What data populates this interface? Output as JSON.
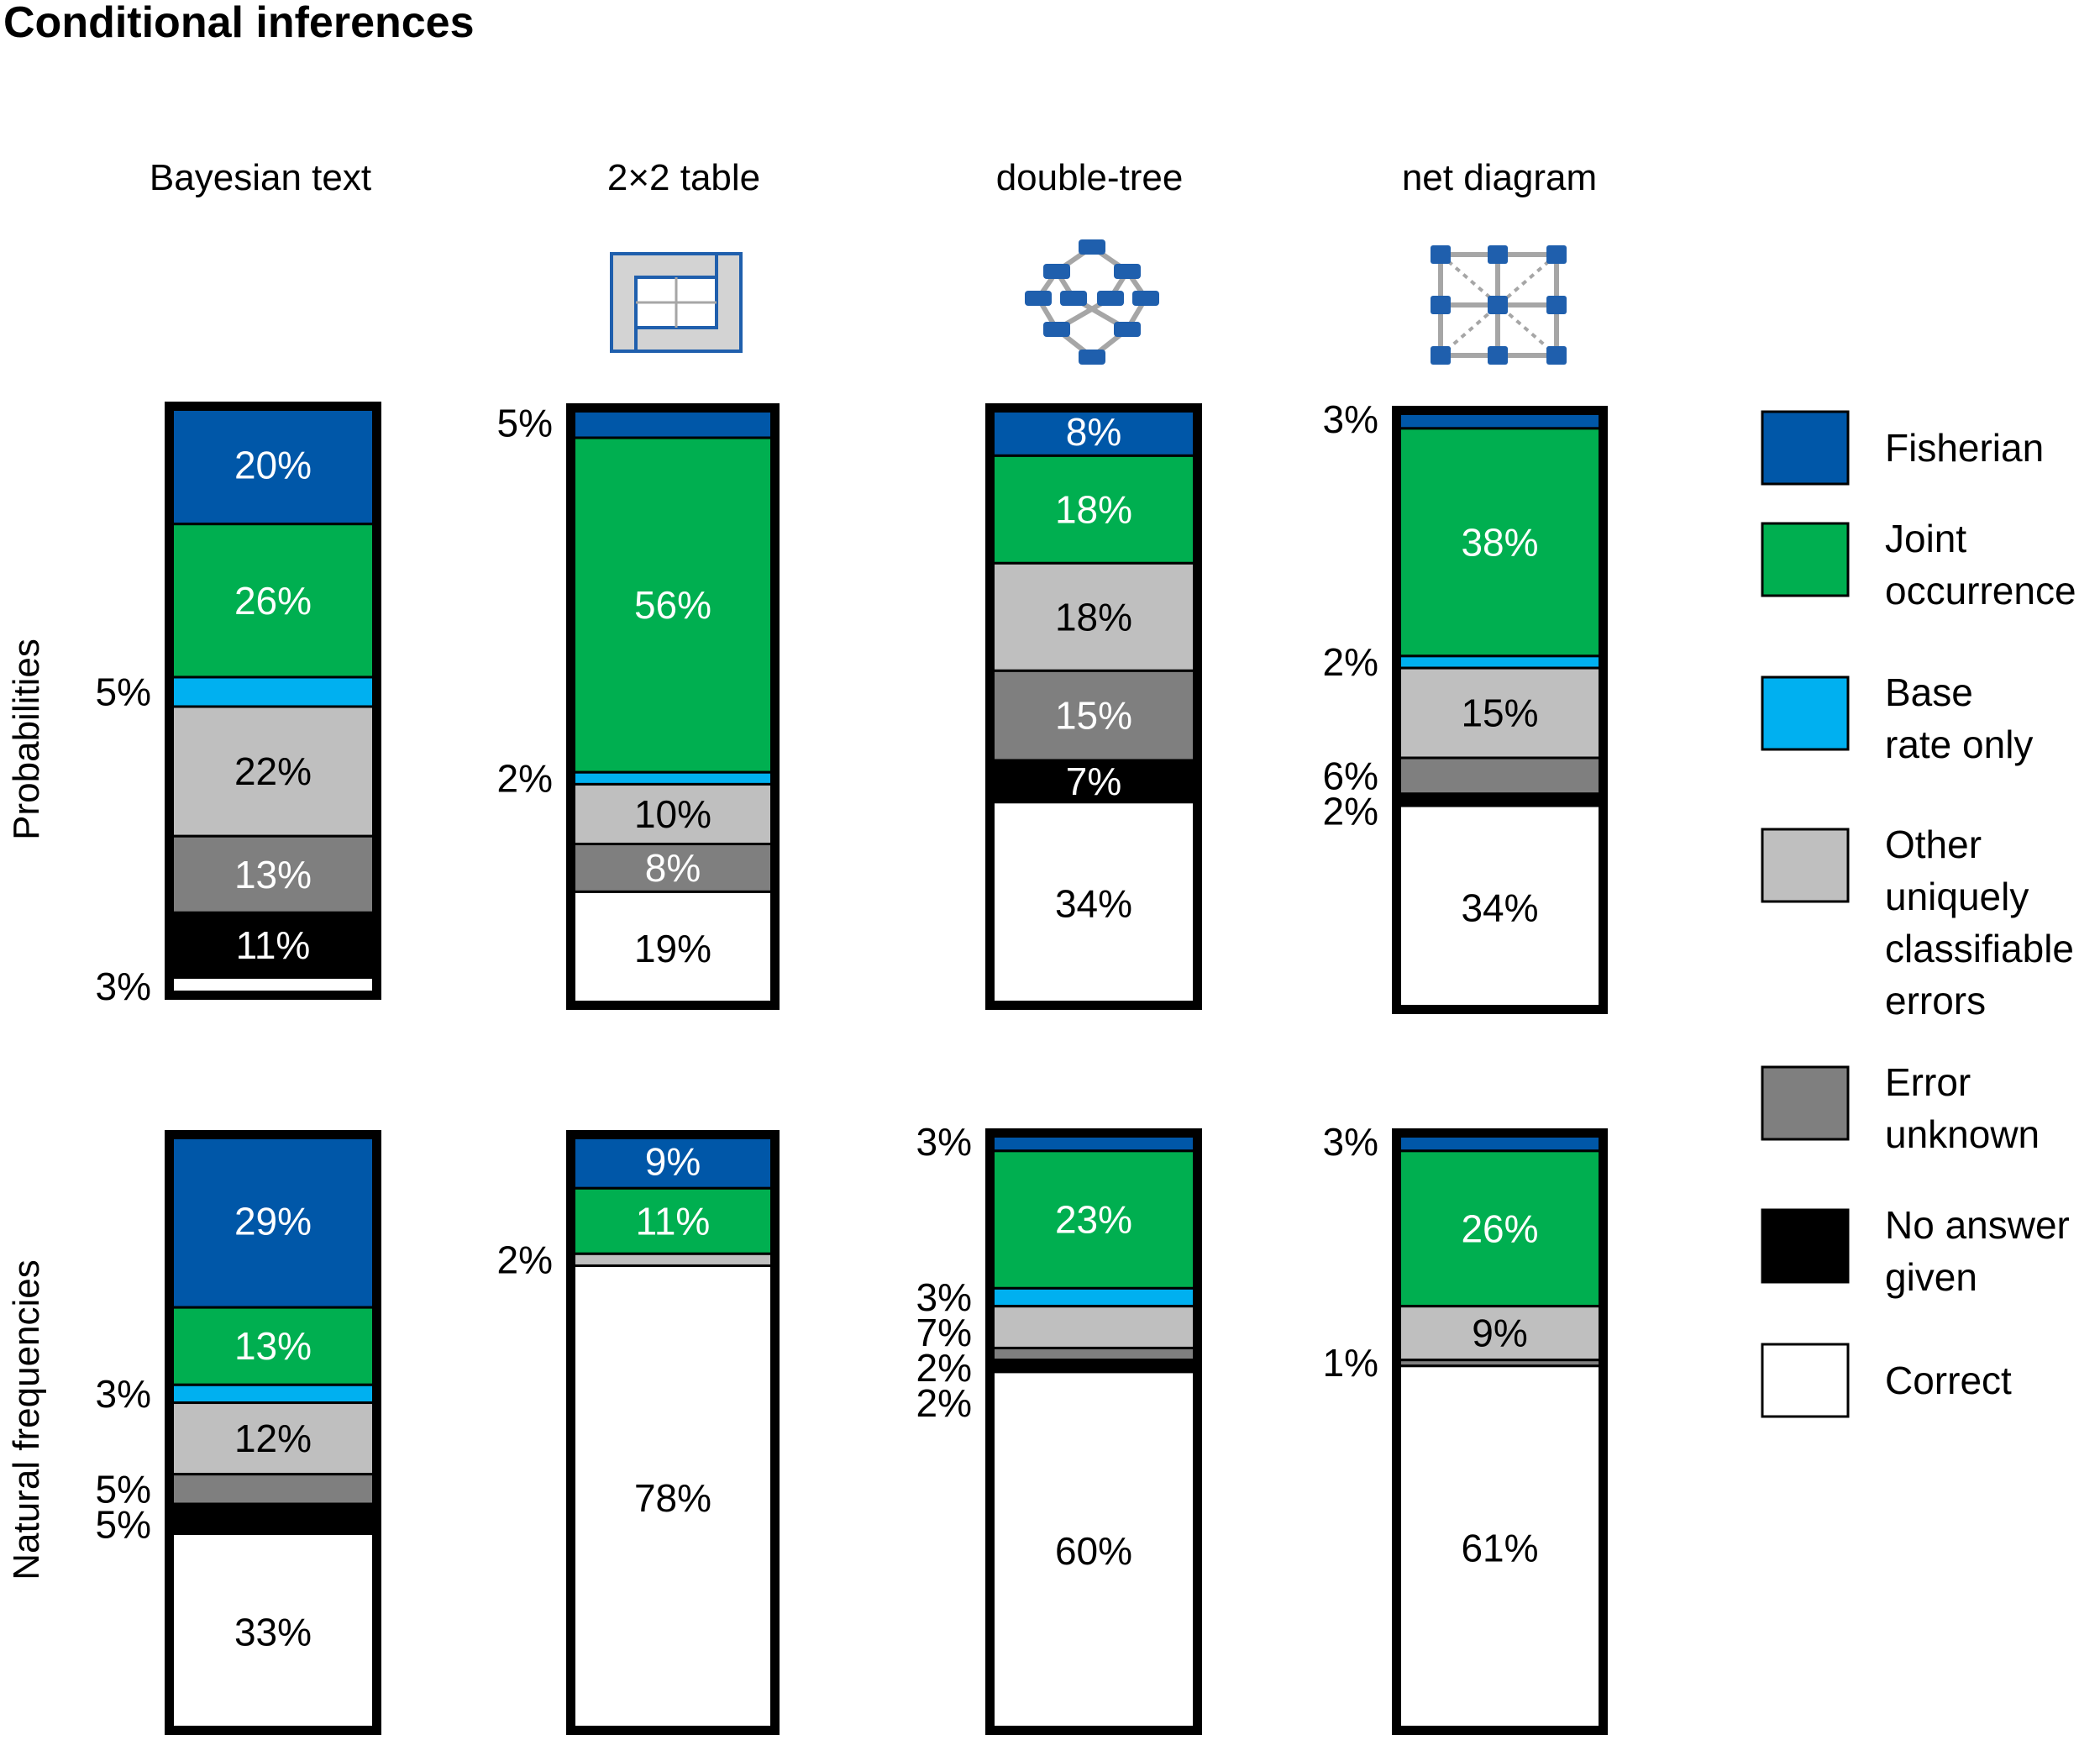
{
  "chart_data": {
    "type": "bar",
    "stacked": true,
    "title": "Conditional inferences",
    "categories": [
      "Bayesian text",
      "2×2 table",
      "double-tree",
      "net diagram"
    ],
    "rows": [
      "Probabilities",
      "Natural frequencies"
    ],
    "legend": {
      "placement": "right",
      "entries": [
        {
          "key": "fisherian",
          "lines": [
            "Fisherian"
          ],
          "color": "#0057A8"
        },
        {
          "key": "joint",
          "lines": [
            "Joint",
            "occurrence"
          ],
          "color": "#00AF50"
        },
        {
          "key": "base",
          "lines": [
            "Base",
            "rate only"
          ],
          "color": "#00B0F0"
        },
        {
          "key": "other",
          "lines": [
            "Other",
            "uniquely",
            "classifiable",
            "errors"
          ],
          "color": "#BFBFBF"
        },
        {
          "key": "unknown",
          "lines": [
            "Error",
            "unknown"
          ],
          "color": "#7F7F7F"
        },
        {
          "key": "noanswer",
          "lines": [
            "No answer",
            "given"
          ],
          "color": "#000000"
        },
        {
          "key": "correct",
          "lines": [
            "Correct"
          ],
          "color": "#FFFFFF"
        }
      ]
    },
    "panels": [
      {
        "row": "Probabilities",
        "category": "Bayesian text",
        "segments": [
          {
            "key": "fisherian",
            "value": 20,
            "label": "20%",
            "label_pos": "inside",
            "label_color": "#FFFFFF"
          },
          {
            "key": "joint",
            "value": 26,
            "label": "26%",
            "label_pos": "inside",
            "label_color": "#FFFFFF"
          },
          {
            "key": "base",
            "value": 5,
            "label": "5%",
            "label_pos": "outside",
            "label_color": "#000000"
          },
          {
            "key": "other",
            "value": 22,
            "label": "22%",
            "label_pos": "inside",
            "label_color": "#000000"
          },
          {
            "key": "unknown",
            "value": 13,
            "label": "13%",
            "label_pos": "inside",
            "label_color": "#FFFFFF"
          },
          {
            "key": "noanswer",
            "value": 11,
            "label": "11%",
            "label_pos": "inside",
            "label_color": "#FFFFFF"
          },
          {
            "key": "correct",
            "value": 3,
            "label": "3%",
            "label_pos": "outside",
            "label_color": "#000000"
          }
        ]
      },
      {
        "row": "Probabilities",
        "category": "2×2 table",
        "segments": [
          {
            "key": "fisherian",
            "value": 5,
            "label": "5%",
            "label_pos": "outside",
            "label_color": "#000000"
          },
          {
            "key": "joint",
            "value": 56,
            "label": "56%",
            "label_pos": "inside",
            "label_color": "#FFFFFF"
          },
          {
            "key": "base",
            "value": 2,
            "label": "2%",
            "label_pos": "outside",
            "label_color": "#000000"
          },
          {
            "key": "other",
            "value": 10,
            "label": "10%",
            "label_pos": "inside",
            "label_color": "#000000"
          },
          {
            "key": "unknown",
            "value": 8,
            "label": "8%",
            "label_pos": "inside",
            "label_color": "#FFFFFF"
          },
          {
            "key": "noanswer",
            "value": 0,
            "label": "",
            "label_pos": "none",
            "label_color": "#FFFFFF"
          },
          {
            "key": "correct",
            "value": 19,
            "label": "19%",
            "label_pos": "inside",
            "label_color": "#000000"
          }
        ]
      },
      {
        "row": "Probabilities",
        "category": "double-tree",
        "segments": [
          {
            "key": "fisherian",
            "value": 8,
            "label": "8%",
            "label_pos": "inside",
            "label_color": "#FFFFFF"
          },
          {
            "key": "joint",
            "value": 18,
            "label": "18%",
            "label_pos": "inside",
            "label_color": "#FFFFFF"
          },
          {
            "key": "base",
            "value": 0,
            "label": "",
            "label_pos": "none",
            "label_color": "#000000"
          },
          {
            "key": "other",
            "value": 18,
            "label": "18%",
            "label_pos": "inside",
            "label_color": "#000000"
          },
          {
            "key": "unknown",
            "value": 15,
            "label": "15%",
            "label_pos": "inside",
            "label_color": "#FFFFFF"
          },
          {
            "key": "noanswer",
            "value": 7,
            "label": "7%",
            "label_pos": "inside",
            "label_color": "#FFFFFF"
          },
          {
            "key": "correct",
            "value": 34,
            "label": "34%",
            "label_pos": "inside",
            "label_color": "#000000"
          }
        ]
      },
      {
        "row": "Probabilities",
        "category": "net diagram",
        "segments": [
          {
            "key": "fisherian",
            "value": 3,
            "label": "3%",
            "label_pos": "outside",
            "label_color": "#000000"
          },
          {
            "key": "joint",
            "value": 38,
            "label": "38%",
            "label_pos": "inside",
            "label_color": "#FFFFFF"
          },
          {
            "key": "base",
            "value": 2,
            "label": "2%",
            "label_pos": "outside",
            "label_color": "#000000"
          },
          {
            "key": "other",
            "value": 15,
            "label": "15%",
            "label_pos": "inside",
            "label_color": "#000000"
          },
          {
            "key": "unknown",
            "value": 6,
            "label": "6%",
            "label_pos": "outside",
            "label_color": "#000000"
          },
          {
            "key": "noanswer",
            "value": 2,
            "label": "2%",
            "label_pos": "outside",
            "label_color": "#000000"
          },
          {
            "key": "correct",
            "value": 34,
            "label": "34%",
            "label_pos": "inside",
            "label_color": "#000000"
          }
        ]
      },
      {
        "row": "Natural frequencies",
        "category": "Bayesian text",
        "segments": [
          {
            "key": "fisherian",
            "value": 29,
            "label": "29%",
            "label_pos": "inside",
            "label_color": "#FFFFFF"
          },
          {
            "key": "joint",
            "value": 13,
            "label": "13%",
            "label_pos": "inside",
            "label_color": "#FFFFFF"
          },
          {
            "key": "base",
            "value": 3,
            "label": "3%",
            "label_pos": "outside",
            "label_color": "#000000"
          },
          {
            "key": "other",
            "value": 12,
            "label": "12%",
            "label_pos": "inside",
            "label_color": "#000000"
          },
          {
            "key": "unknown",
            "value": 5,
            "label": "5%",
            "label_pos": "outside",
            "label_color": "#000000"
          },
          {
            "key": "noanswer",
            "value": 5,
            "label": "5%",
            "label_pos": "outside",
            "label_color": "#000000"
          },
          {
            "key": "correct",
            "value": 33,
            "label": "33%",
            "label_pos": "inside",
            "label_color": "#000000"
          }
        ]
      },
      {
        "row": "Natural frequencies",
        "category": "2×2 table",
        "segments": [
          {
            "key": "fisherian",
            "value": 9,
            "label": "9%",
            "label_pos": "inside",
            "label_color": "#FFFFFF"
          },
          {
            "key": "joint",
            "value": 11,
            "label": "11%",
            "label_pos": "inside",
            "label_color": "#FFFFFF"
          },
          {
            "key": "base",
            "value": 0,
            "label": "",
            "label_pos": "none",
            "label_color": "#000000"
          },
          {
            "key": "other",
            "value": 2,
            "label": "2%",
            "label_pos": "outside",
            "label_color": "#000000"
          },
          {
            "key": "unknown",
            "value": 0,
            "label": "",
            "label_pos": "none",
            "label_color": "#FFFFFF"
          },
          {
            "key": "noanswer",
            "value": 0,
            "label": "",
            "label_pos": "none",
            "label_color": "#FFFFFF"
          },
          {
            "key": "correct",
            "value": 78,
            "label": "78%",
            "label_pos": "inside",
            "label_color": "#000000"
          }
        ]
      },
      {
        "row": "Natural frequencies",
        "category": "double-tree",
        "segments": [
          {
            "key": "fisherian",
            "value": 3,
            "label": "3%",
            "label_pos": "outside",
            "label_color": "#000000"
          },
          {
            "key": "joint",
            "value": 23,
            "label": "23%",
            "label_pos": "inside",
            "label_color": "#FFFFFF"
          },
          {
            "key": "base",
            "value": 3,
            "label": "3%",
            "label_pos": "outside",
            "label_color": "#000000"
          },
          {
            "key": "other",
            "value": 7,
            "label": "7%",
            "label_pos": "outside",
            "label_color": "#000000"
          },
          {
            "key": "unknown",
            "value": 2,
            "label": "2%",
            "label_pos": "outside",
            "label_color": "#000000"
          },
          {
            "key": "noanswer",
            "value": 2,
            "label": "2%",
            "label_pos": "outside",
            "label_color": "#000000"
          },
          {
            "key": "correct",
            "value": 60,
            "label": "60%",
            "label_pos": "inside",
            "label_color": "#000000"
          }
        ]
      },
      {
        "row": "Natural frequencies",
        "category": "net diagram",
        "segments": [
          {
            "key": "fisherian",
            "value": 3,
            "label": "3%",
            "label_pos": "outside",
            "label_color": "#000000"
          },
          {
            "key": "joint",
            "value": 26,
            "label": "26%",
            "label_pos": "inside",
            "label_color": "#FFFFFF"
          },
          {
            "key": "base",
            "value": 0,
            "label": "",
            "label_pos": "none",
            "label_color": "#000000"
          },
          {
            "key": "other",
            "value": 9,
            "label": "9%",
            "label_pos": "inside",
            "label_color": "#000000"
          },
          {
            "key": "unknown",
            "value": 1,
            "label": "1%",
            "label_pos": "outside",
            "label_color": "#000000"
          },
          {
            "key": "noanswer",
            "value": 0,
            "label": "",
            "label_pos": "none",
            "label_color": "#FFFFFF"
          },
          {
            "key": "correct",
            "value": 61,
            "label": "61%",
            "label_pos": "inside",
            "label_color": "#000000"
          }
        ]
      }
    ]
  }
}
